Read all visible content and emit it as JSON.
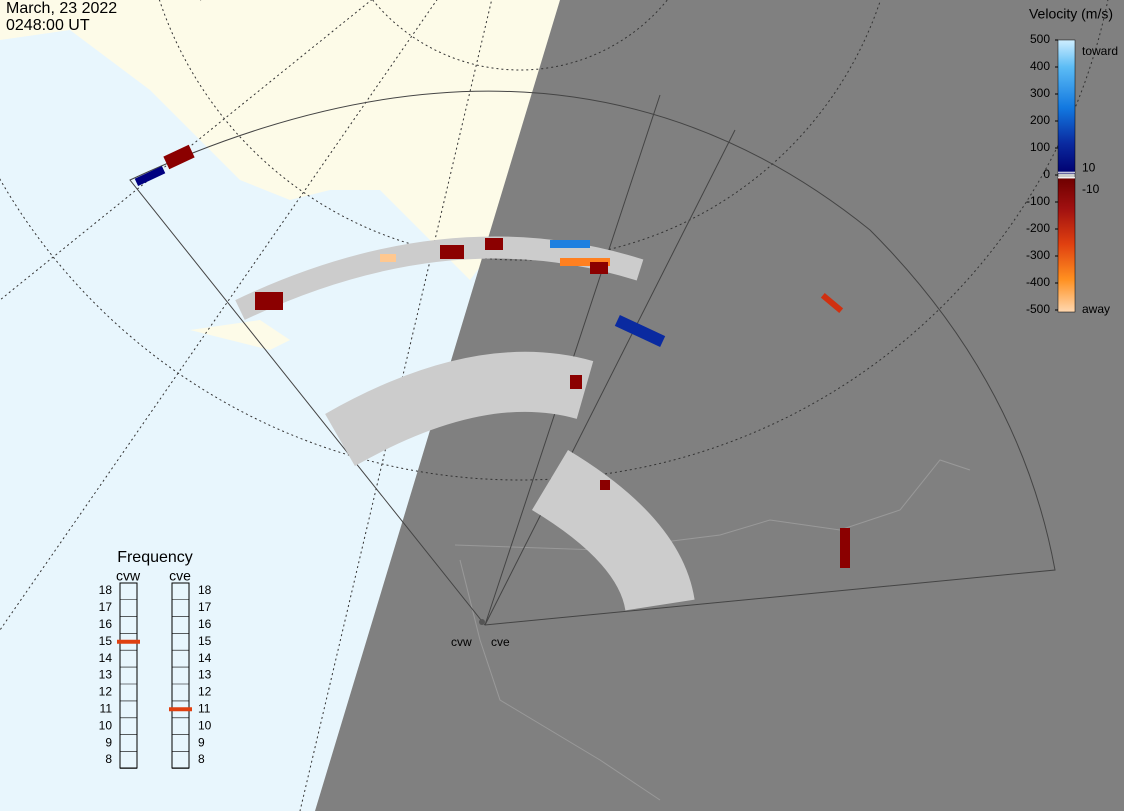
{
  "header": {
    "date": "March, 23 2022",
    "time": "0248:00 UT"
  },
  "colorbar": {
    "title": "Velocity (m/s)",
    "lim": [
      -500,
      500
    ],
    "ticks": [
      500,
      400,
      300,
      200,
      100,
      0,
      -100,
      -200,
      -300,
      -400,
      -500
    ],
    "inner_ticks": [
      10,
      -10
    ],
    "toward": "toward",
    "away": "away"
  },
  "frequency": {
    "title": "Frequency",
    "lim": [
      8,
      18
    ],
    "radars": [
      {
        "name": "cvw",
        "value": 15,
        "ticks": [
          18,
          17,
          16,
          15,
          14,
          13,
          12,
          11,
          10,
          9,
          8
        ]
      },
      {
        "name": "cve",
        "value": 11,
        "ticks": [
          18,
          17,
          16,
          15,
          14,
          13,
          12,
          11,
          10,
          9,
          8
        ]
      }
    ]
  },
  "sites": [
    "cvw",
    "cve"
  ]
}
